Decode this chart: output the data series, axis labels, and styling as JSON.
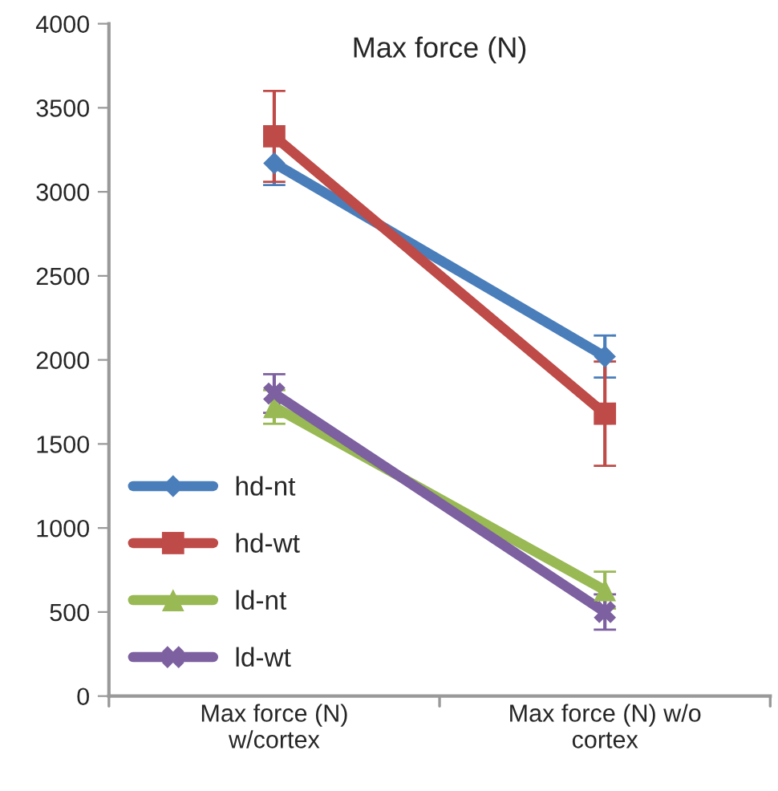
{
  "chart_data": {
    "type": "line",
    "title": "Max force (N)",
    "categories": [
      "Max force (N)\nw/cortex",
      "Max force (N) w/o\ncortex"
    ],
    "series": [
      {
        "name": "hd-nt",
        "color": "#4a7ebb",
        "marker": "diamond",
        "values": [
          3170,
          2020
        ],
        "errors": [
          130,
          125
        ]
      },
      {
        "name": "hd-wt",
        "color": "#be4b48",
        "marker": "square",
        "values": [
          3330,
          1680
        ],
        "errors": [
          270,
          310
        ]
      },
      {
        "name": "ld-nt",
        "color": "#98b954",
        "marker": "triangle",
        "values": [
          1720,
          630
        ],
        "errors": [
          100,
          110
        ]
      },
      {
        "name": "ld-wt",
        "color": "#7d60a0",
        "marker": "cross",
        "values": [
          1800,
          500
        ],
        "errors": [
          115,
          105
        ]
      }
    ],
    "ylim": [
      0,
      4000
    ],
    "yticks": [
      0,
      500,
      1000,
      1500,
      2000,
      2500,
      3000,
      3500,
      4000
    ],
    "grid": false,
    "legend": "bottom left"
  }
}
